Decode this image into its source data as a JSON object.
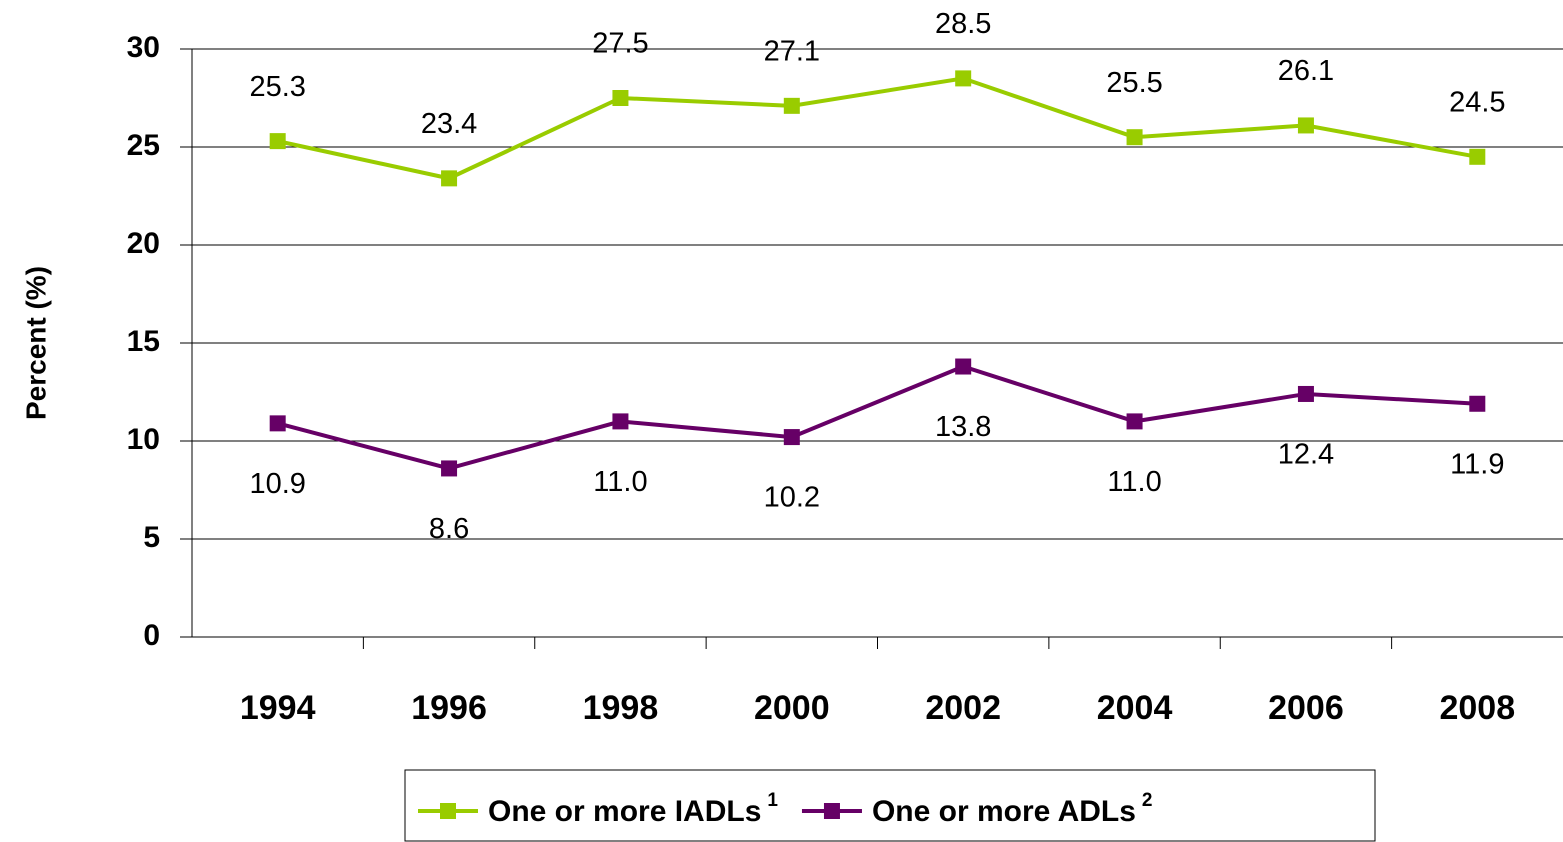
{
  "chart_data": {
    "type": "line",
    "y_label": "Percent (%)",
    "categories": [
      "1994",
      "1996",
      "1998",
      "2000",
      "2002",
      "2004",
      "2006",
      "2008"
    ],
    "series": [
      {
        "name": "One or more IADLs",
        "superscript": "1",
        "color": "#99cc00",
        "values": [
          25.3,
          23.4,
          27.5,
          27.1,
          28.5,
          25.5,
          26.1,
          24.5
        ],
        "label_position": "above"
      },
      {
        "name": "One or more ADLs",
        "superscript": "2",
        "color": "#660066",
        "values": [
          10.9,
          8.6,
          11.0,
          10.2,
          13.8,
          11.0,
          12.4,
          11.9
        ],
        "value_labels": [
          "10.9",
          "8.6",
          "11.0",
          "10.2",
          "13.8",
          "11.0",
          "12.4",
          "11.9"
        ],
        "label_position": "below"
      }
    ],
    "ylim": [
      0,
      30
    ],
    "yticks": [
      0,
      5,
      10,
      15,
      20,
      25,
      30
    ],
    "grid": true,
    "legend": "bottom"
  }
}
